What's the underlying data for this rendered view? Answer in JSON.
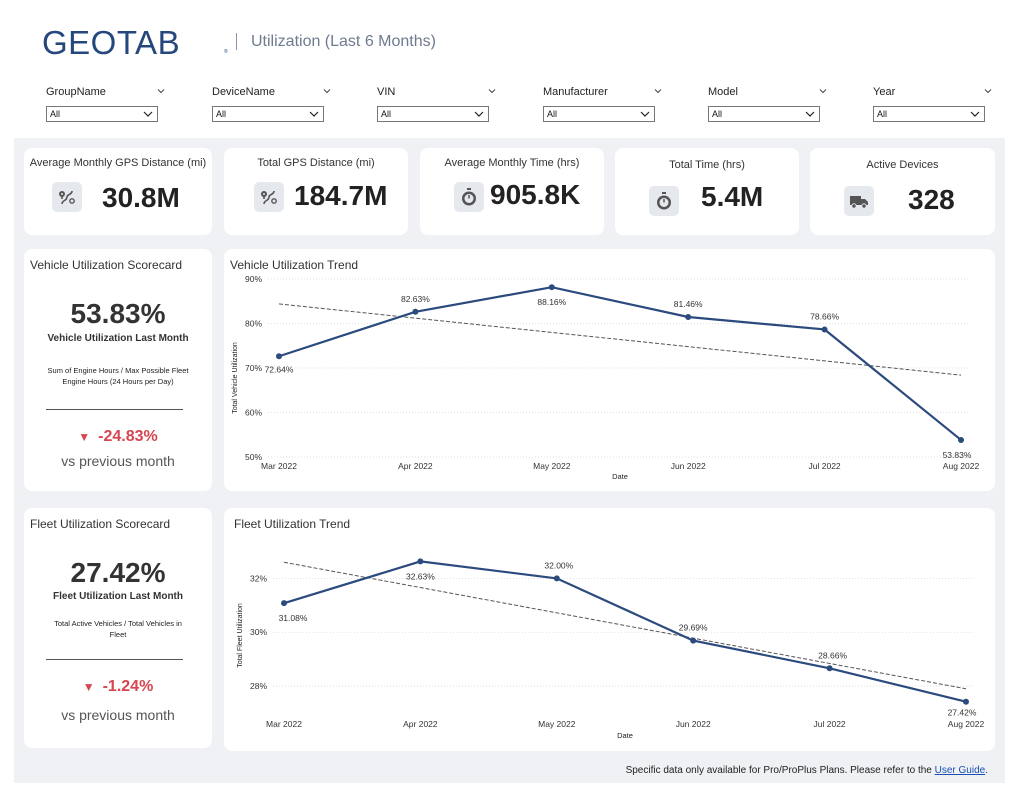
{
  "header": {
    "logo_text": "GEOTAB",
    "logo_tm": "®",
    "title": "Utilization (Last 6 Months)"
  },
  "filters": [
    {
      "label": "GroupName",
      "value": "All"
    },
    {
      "label": "DeviceName",
      "value": "All"
    },
    {
      "label": "VIN",
      "value": "All"
    },
    {
      "label": "Manufacturer",
      "value": "All"
    },
    {
      "label": "Model",
      "value": "All"
    },
    {
      "label": "Year",
      "value": "All"
    }
  ],
  "kpis": [
    {
      "title": "Average Monthly GPS Distance (mi)",
      "value": "30.8M",
      "icon": "route-icon"
    },
    {
      "title": "Total GPS Distance (mi)",
      "value": "184.7M",
      "icon": "route-icon"
    },
    {
      "title": "Average Monthly Time (hrs)",
      "value": "905.8K",
      "icon": "stopwatch-icon"
    },
    {
      "title": "Total Time (hrs)",
      "value": "5.4M",
      "icon": "stopwatch-icon"
    },
    {
      "title": "Active Devices",
      "value": "328",
      "icon": "truck-icon"
    }
  ],
  "vehicle_scorecard": {
    "title": "Vehicle Utilization Scorecard",
    "value": "53.83%",
    "subtitle": "Vehicle Utilization Last Month",
    "note_line1": "Sum of Engine Hours / Max Possible Fleet",
    "note_line2": "Engine Hours (24 Hours per Day)",
    "delta_icon": "▼",
    "delta": "-24.83%",
    "vs": "vs previous month"
  },
  "fleet_scorecard": {
    "title": "Fleet Utilization Scorecard",
    "value": "27.42%",
    "subtitle": "Fleet Utilization Last Month",
    "note_line1": "Total Active Vehicles / Total Vehicles in",
    "note_line2": "Fleet",
    "delta_icon": "▼",
    "delta": "-1.24%",
    "vs": "vs previous month"
  },
  "colors": {
    "line": "#2b4a7d",
    "delta": "#d64550",
    "logo": "#25477b"
  },
  "chart_data": [
    {
      "type": "line",
      "title": "Vehicle Utilization Trend",
      "xlabel": "Date",
      "ylabel": "Total Vehicle Utilization",
      "categories": [
        "Mar 2022",
        "Apr 2022",
        "May 2022",
        "Jun 2022",
        "Jul 2022",
        "Aug 2022"
      ],
      "values": [
        72.64,
        82.63,
        88.16,
        81.46,
        78.66,
        53.83
      ],
      "labels": [
        "72.64%",
        "82.63%",
        "88.16%",
        "81.46%",
        "78.66%",
        "53.83%"
      ],
      "yticks": [
        50,
        60,
        70,
        80,
        90
      ],
      "ytick_labels": [
        "50%",
        "60%",
        "70%",
        "80%",
        "90%"
      ],
      "ylim": [
        50,
        90
      ],
      "trend": [
        84.4,
        68.4
      ]
    },
    {
      "type": "line",
      "title": "Fleet Utilization Trend",
      "xlabel": "Date",
      "ylabel": "Total Fleet Utilization",
      "categories": [
        "Mar 2022",
        "Apr 2022",
        "May 2022",
        "Jun 2022",
        "Jul 2022",
        "Aug 2022"
      ],
      "values": [
        31.08,
        32.63,
        32.0,
        29.69,
        28.66,
        27.42
      ],
      "labels": [
        "31.08%",
        "32.63%",
        "32.00%",
        "29.69%",
        "28.66%",
        "27.42%"
      ],
      "yticks": [
        28,
        30,
        32
      ],
      "ytick_labels": [
        "28%",
        "30%",
        "32%"
      ],
      "ylim": [
        27.0,
        33.5
      ],
      "trend": [
        32.6,
        27.9
      ]
    }
  ],
  "footer": {
    "text": "Specific data only available for Pro/ProPlus Plans. Please refer to the",
    "link": "User Guide",
    "end": "."
  }
}
